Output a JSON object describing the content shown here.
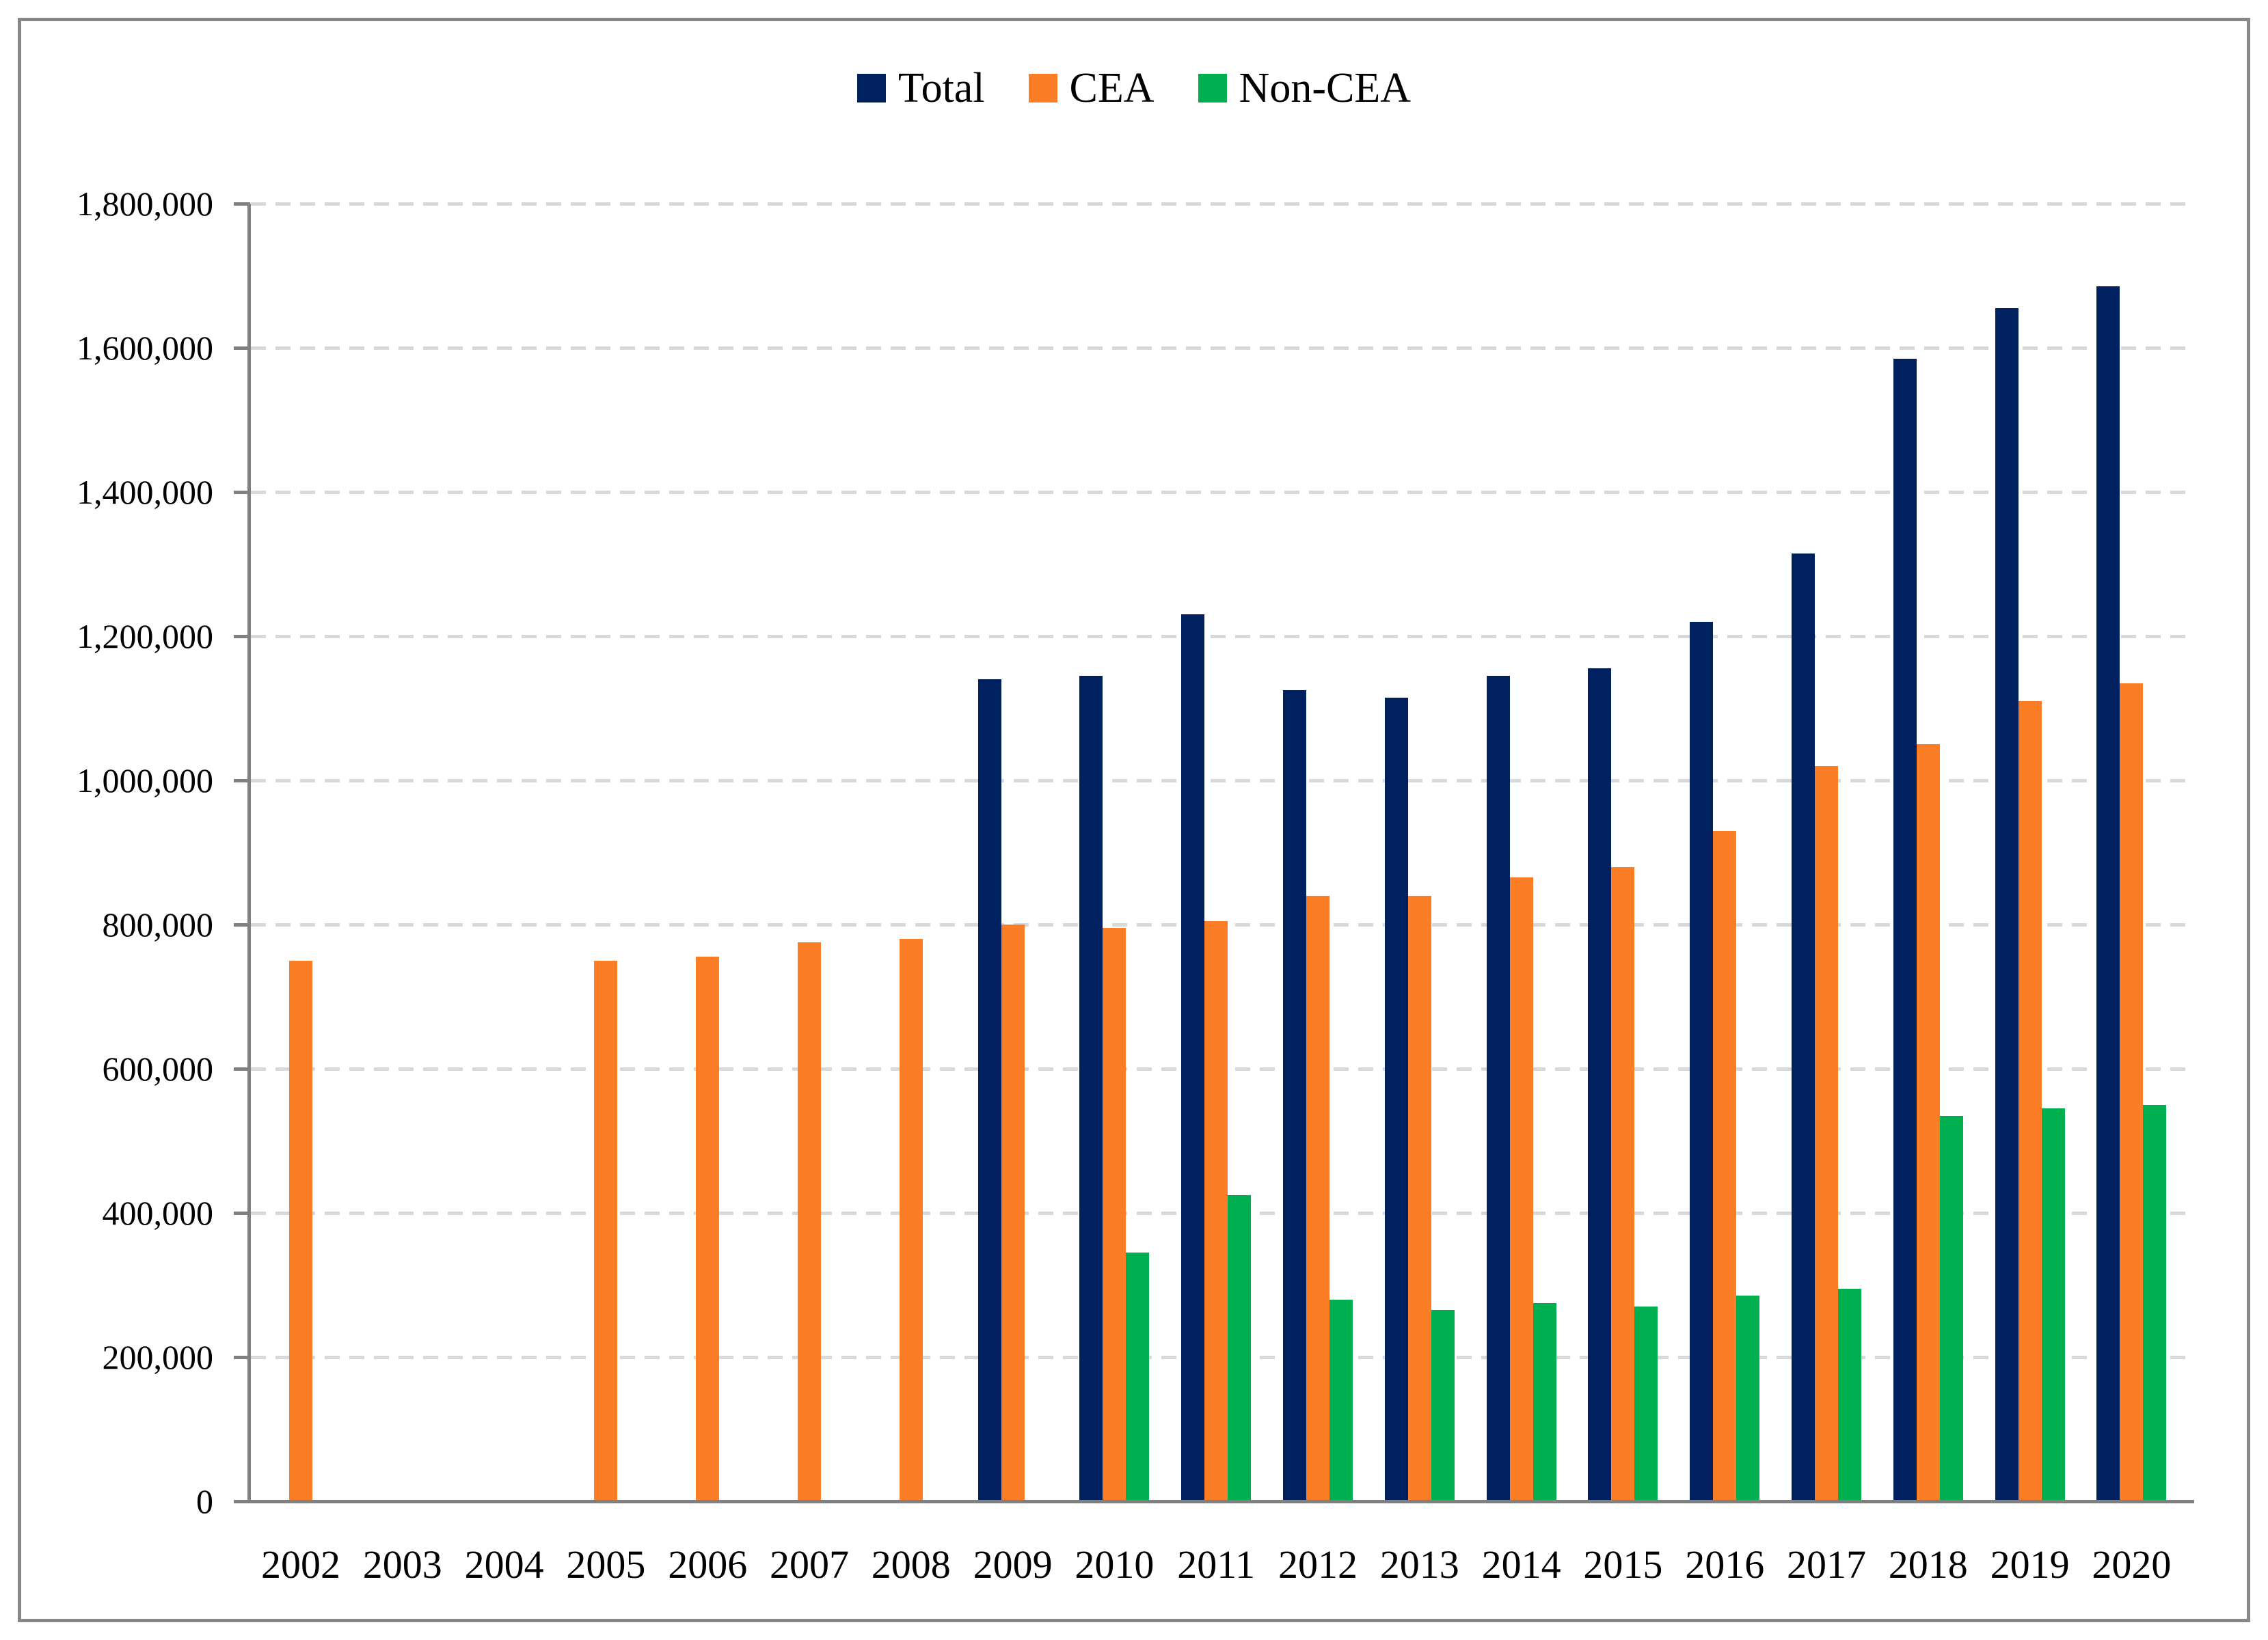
{
  "figure": {
    "background_color": "#FFFFFF",
    "border_color": "#888888"
  },
  "legend": {
    "position": "top-center",
    "items": [
      {
        "label": "Total",
        "color": "#002060",
        "swatch": "square-icon"
      },
      {
        "label": "CEA",
        "color": "#FB7E26",
        "swatch": "square-icon"
      },
      {
        "label": "Non-CEA",
        "color": "#00B050",
        "swatch": "square-icon"
      }
    ]
  },
  "chart_data": {
    "type": "bar",
    "title": "",
    "xlabel": "",
    "ylabel": "",
    "categories": [
      "2002",
      "2003",
      "2004",
      "2005",
      "2006",
      "2007",
      "2008",
      "2009",
      "2010",
      "2011",
      "2012",
      "2013",
      "2014",
      "2015",
      "2016",
      "2017",
      "2018",
      "2019",
      "2020"
    ],
    "series": [
      {
        "name": "Total",
        "color": "#002060",
        "values": [
          null,
          null,
          null,
          null,
          null,
          null,
          null,
          1140000,
          1145000,
          1230000,
          1125000,
          1115000,
          1145000,
          1155000,
          1220000,
          1315000,
          1585000,
          1655000,
          1685000
        ]
      },
      {
        "name": "CEA",
        "color": "#FB7E26",
        "values": [
          750000,
          null,
          null,
          750000,
          755000,
          775000,
          780000,
          800000,
          795000,
          805000,
          840000,
          840000,
          865000,
          880000,
          930000,
          1020000,
          1050000,
          1110000,
          1135000
        ]
      },
      {
        "name": "Non-CEA",
        "color": "#00B050",
        "values": [
          null,
          null,
          null,
          null,
          null,
          null,
          null,
          null,
          345000,
          425000,
          280000,
          265000,
          275000,
          270000,
          285000,
          295000,
          535000,
          545000,
          550000
        ]
      }
    ],
    "ylim": [
      0,
      1800000
    ],
    "ytick_interval": 200000,
    "yticks": [
      {
        "value": 0,
        "label": "0"
      },
      {
        "value": 200000,
        "label": "200,000"
      },
      {
        "value": 400000,
        "label": "400,000"
      },
      {
        "value": 600000,
        "label": "600,000"
      },
      {
        "value": 800000,
        "label": "800,000"
      },
      {
        "value": 1000000,
        "label": "1,000,000"
      },
      {
        "value": 1200000,
        "label": "1,200,000"
      },
      {
        "value": 1400000,
        "label": "1,400,000"
      },
      {
        "value": 1600000,
        "label": "1,600,000"
      },
      {
        "value": 1800000,
        "label": "1,800,000"
      }
    ],
    "grid": "horizontal-dashed",
    "gridline_color": "#D9D9D9",
    "axis_color": "#808080",
    "legend_position": "top-center"
  }
}
